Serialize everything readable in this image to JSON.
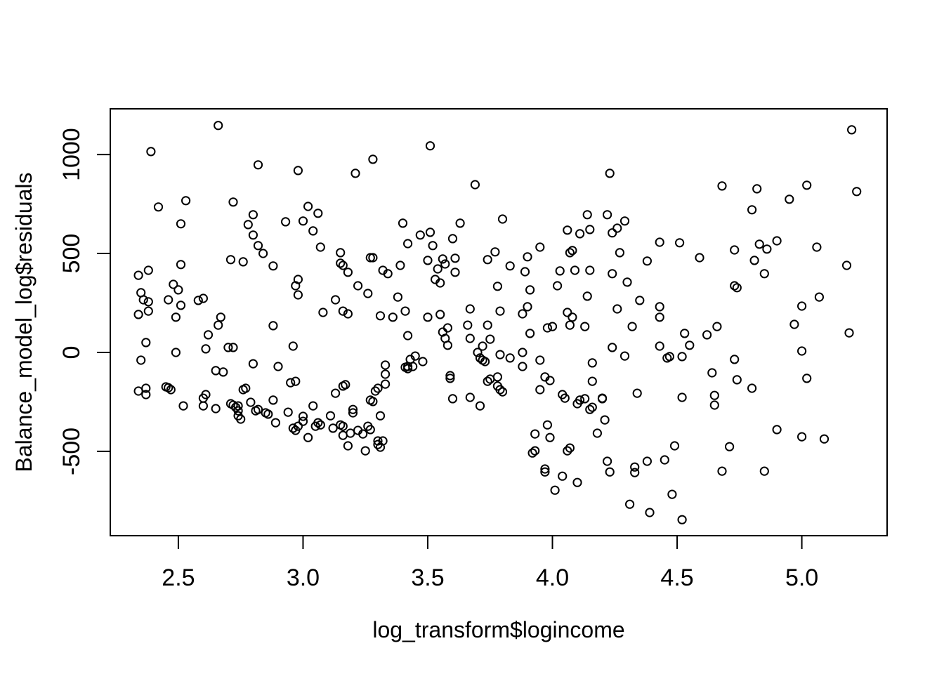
{
  "chart_data": {
    "type": "scatter",
    "title": "",
    "xlabel": "log_transform$logincome",
    "ylabel": "Balance_model_log$residuals",
    "marker": "open-circle",
    "marker_color": "#000000",
    "background_color": "#ffffff",
    "grid": false,
    "legend": "none",
    "xlim": [
      2.227,
      5.342
    ],
    "ylim": [
      -926,
      1231
    ],
    "x_ticks": [
      2.5,
      3.0,
      3.5,
      4.0,
      4.5,
      5.0
    ],
    "x_tick_labels": [
      "2.5",
      "3.0",
      "3.5",
      "4.0",
      "4.5",
      "5.0"
    ],
    "y_ticks": [
      -500,
      0,
      500,
      1000
    ],
    "y_tick_labels": [
      "-500",
      "0",
      "500",
      "1000"
    ],
    "points": [
      [
        2.66,
        1147
      ],
      [
        2.39,
        1015
      ],
      [
        2.82,
        948
      ],
      [
        2.98,
        919
      ],
      [
        3.21,
        905
      ],
      [
        3.28,
        976
      ],
      [
        2.42,
        735
      ],
      [
        2.53,
        767
      ],
      [
        2.72,
        760
      ],
      [
        2.51,
        650
      ],
      [
        2.78,
        646
      ],
      [
        2.8,
        696
      ],
      [
        2.8,
        593
      ],
      [
        2.82,
        540
      ],
      [
        2.84,
        500
      ],
      [
        2.93,
        660
      ],
      [
        3.0,
        664
      ],
      [
        3.02,
        738
      ],
      [
        3.04,
        614
      ],
      [
        3.06,
        703
      ],
      [
        3.07,
        532
      ],
      [
        3.15,
        504
      ],
      [
        3.15,
        451
      ],
      [
        3.16,
        440
      ],
      [
        3.18,
        405
      ],
      [
        3.27,
        479
      ],
      [
        3.28,
        479
      ],
      [
        3.22,
        337
      ],
      [
        3.26,
        298
      ],
      [
        3.32,
        415
      ],
      [
        3.34,
        398
      ],
      [
        2.71,
        469
      ],
      [
        2.76,
        458
      ],
      [
        2.88,
        437
      ],
      [
        2.51,
        444
      ],
      [
        2.34,
        390
      ],
      [
        2.38,
        415
      ],
      [
        2.35,
        302
      ],
      [
        2.36,
        266
      ],
      [
        2.38,
        256
      ],
      [
        2.38,
        209
      ],
      [
        2.48,
        344
      ],
      [
        2.5,
        316
      ],
      [
        2.46,
        266
      ],
      [
        2.51,
        238
      ],
      [
        2.58,
        263
      ],
      [
        2.6,
        273
      ],
      [
        2.67,
        178
      ],
      [
        2.49,
        178
      ],
      [
        2.34,
        192
      ],
      [
        2.98,
        369
      ],
      [
        2.97,
        337
      ],
      [
        2.98,
        291
      ],
      [
        3.08,
        202
      ],
      [
        3.13,
        266
      ],
      [
        3.16,
        209
      ],
      [
        3.18,
        195
      ],
      [
        3.31,
        185
      ],
      [
        3.51,
        1044
      ],
      [
        3.69,
        848
      ],
      [
        4.23,
        905
      ],
      [
        3.4,
        653
      ],
      [
        3.63,
        653
      ],
      [
        3.8,
        674
      ],
      [
        4.14,
        696
      ],
      [
        4.22,
        696
      ],
      [
        4.29,
        664
      ],
      [
        4.06,
        618
      ],
      [
        4.11,
        600
      ],
      [
        4.15,
        621
      ],
      [
        4.24,
        604
      ],
      [
        4.26,
        628
      ],
      [
        3.47,
        593
      ],
      [
        3.51,
        607
      ],
      [
        3.42,
        550
      ],
      [
        3.52,
        540
      ],
      [
        3.6,
        575
      ],
      [
        4.43,
        557
      ],
      [
        3.95,
        532
      ],
      [
        4.08,
        515
      ],
      [
        4.07,
        504
      ],
      [
        4.27,
        504
      ],
      [
        3.5,
        465
      ],
      [
        3.56,
        472
      ],
      [
        3.57,
        447
      ],
      [
        3.61,
        476
      ],
      [
        3.74,
        469
      ],
      [
        3.77,
        508
      ],
      [
        3.9,
        483
      ],
      [
        4.38,
        462
      ],
      [
        3.39,
        440
      ],
      [
        3.54,
        422
      ],
      [
        3.61,
        405
      ],
      [
        3.53,
        369
      ],
      [
        3.55,
        351
      ],
      [
        3.83,
        437
      ],
      [
        3.89,
        408
      ],
      [
        4.03,
        412
      ],
      [
        4.09,
        415
      ],
      [
        4.15,
        415
      ],
      [
        4.24,
        398
      ],
      [
        4.3,
        355
      ],
      [
        3.78,
        334
      ],
      [
        3.91,
        316
      ],
      [
        4.02,
        337
      ],
      [
        4.14,
        284
      ],
      [
        3.38,
        280
      ],
      [
        3.67,
        220
      ],
      [
        3.79,
        209
      ],
      [
        3.9,
        231
      ],
      [
        3.88,
        195
      ],
      [
        4.06,
        202
      ],
      [
        4.08,
        178
      ],
      [
        4.26,
        220
      ],
      [
        4.35,
        263
      ],
      [
        4.43,
        231
      ],
      [
        4.43,
        178
      ],
      [
        3.36,
        178
      ],
      [
        3.41,
        209
      ],
      [
        3.5,
        178
      ],
      [
        3.55,
        192
      ],
      [
        5.2,
        1125
      ],
      [
        4.68,
        841
      ],
      [
        4.82,
        827
      ],
      [
        5.02,
        845
      ],
      [
        5.22,
        813
      ],
      [
        4.95,
        774
      ],
      [
        4.8,
        721
      ],
      [
        4.51,
        554
      ],
      [
        4.59,
        479
      ],
      [
        4.73,
        518
      ],
      [
        4.83,
        547
      ],
      [
        4.86,
        522
      ],
      [
        4.9,
        564
      ],
      [
        4.81,
        465
      ],
      [
        4.85,
        398
      ],
      [
        5.06,
        532
      ],
      [
        5.18,
        440
      ],
      [
        4.73,
        337
      ],
      [
        4.74,
        327
      ],
      [
        5.07,
        280
      ],
      [
        5.0,
        234
      ],
      [
        2.37,
        50
      ],
      [
        2.35,
        -39
      ],
      [
        2.49,
        0
      ],
      [
        2.62,
        89
      ],
      [
        2.66,
        138
      ],
      [
        2.61,
        18
      ],
      [
        2.7,
        25
      ],
      [
        2.72,
        25
      ],
      [
        2.88,
        135
      ],
      [
        2.96,
        32
      ],
      [
        2.8,
        -57
      ],
      [
        2.9,
        -71
      ],
      [
        2.65,
        -92
      ],
      [
        2.68,
        -99
      ],
      [
        2.34,
        -195
      ],
      [
        2.37,
        -181
      ],
      [
        2.37,
        -213
      ],
      [
        2.45,
        -174
      ],
      [
        2.46,
        -178
      ],
      [
        2.47,
        -188
      ],
      [
        2.52,
        -270
      ],
      [
        2.6,
        -231
      ],
      [
        2.61,
        -213
      ],
      [
        2.6,
        -270
      ],
      [
        2.65,
        -284
      ],
      [
        2.71,
        -259
      ],
      [
        2.72,
        -266
      ],
      [
        2.73,
        -277
      ],
      [
        2.74,
        -295
      ],
      [
        2.74,
        -270
      ],
      [
        2.76,
        -188
      ],
      [
        2.77,
        -181
      ],
      [
        2.74,
        -320
      ],
      [
        2.75,
        -337
      ],
      [
        2.79,
        -252
      ],
      [
        2.81,
        -295
      ],
      [
        2.82,
        -288
      ],
      [
        2.85,
        -305
      ],
      [
        2.86,
        -312
      ],
      [
        2.88,
        -241
      ],
      [
        2.89,
        -355
      ],
      [
        2.94,
        -302
      ],
      [
        2.96,
        -383
      ],
      [
        2.97,
        -394
      ],
      [
        2.98,
        -373
      ],
      [
        3.0,
        -323
      ],
      [
        3.0,
        -348
      ],
      [
        3.02,
        -430
      ],
      [
        3.04,
        -270
      ],
      [
        3.05,
        -373
      ],
      [
        3.06,
        -355
      ],
      [
        3.07,
        -366
      ],
      [
        3.11,
        -320
      ],
      [
        3.12,
        -383
      ],
      [
        3.15,
        -366
      ],
      [
        3.16,
        -373
      ],
      [
        3.16,
        -419
      ],
      [
        3.18,
        -472
      ],
      [
        3.19,
        -408
      ],
      [
        3.2,
        -305
      ],
      [
        3.2,
        -288
      ],
      [
        3.22,
        -394
      ],
      [
        3.24,
        -412
      ],
      [
        3.25,
        -497
      ],
      [
        3.26,
        -373
      ],
      [
        3.27,
        -390
      ],
      [
        3.27,
        -241
      ],
      [
        3.28,
        -248
      ],
      [
        3.3,
        -447
      ],
      [
        3.3,
        -465
      ],
      [
        3.31,
        -479
      ],
      [
        3.31,
        -320
      ],
      [
        3.32,
        -447
      ],
      [
        3.33,
        -64
      ],
      [
        3.33,
        -160
      ],
      [
        3.29,
        -195
      ],
      [
        3.3,
        -181
      ],
      [
        3.16,
        -170
      ],
      [
        3.17,
        -163
      ],
      [
        3.13,
        -206
      ],
      [
        2.95,
        -153
      ],
      [
        2.97,
        -146
      ],
      [
        3.42,
        85
      ],
      [
        3.58,
        124
      ],
      [
        3.57,
        71
      ],
      [
        3.58,
        36
      ],
      [
        3.67,
        71
      ],
      [
        3.66,
        138
      ],
      [
        3.74,
        138
      ],
      [
        3.75,
        67
      ],
      [
        3.72,
        32
      ],
      [
        3.7,
        0
      ],
      [
        3.71,
        -28
      ],
      [
        3.72,
        -39
      ],
      [
        3.73,
        -46
      ],
      [
        3.45,
        -18
      ],
      [
        3.48,
        -46
      ],
      [
        3.43,
        -35
      ],
      [
        3.44,
        -71
      ],
      [
        3.41,
        -75
      ],
      [
        3.42,
        -82
      ],
      [
        3.42,
        -71
      ],
      [
        3.33,
        -110
      ],
      [
        3.79,
        -11
      ],
      [
        3.83,
        -28
      ],
      [
        3.88,
        0
      ],
      [
        3.88,
        -71
      ],
      [
        3.91,
        96
      ],
      [
        3.95,
        -39
      ],
      [
        3.98,
        124
      ],
      [
        4.0,
        131
      ],
      [
        4.07,
        138
      ],
      [
        4.13,
        131
      ],
      [
        4.16,
        -53
      ],
      [
        4.16,
        -146
      ],
      [
        4.2,
        -231
      ],
      [
        4.32,
        131
      ],
      [
        4.24,
        25
      ],
      [
        4.29,
        -18
      ],
      [
        4.43,
        32
      ],
      [
        4.46,
        -28
      ],
      [
        4.34,
        -206
      ],
      [
        3.59,
        -117
      ],
      [
        3.59,
        -131
      ],
      [
        3.56,
        103
      ],
      [
        3.6,
        -234
      ],
      [
        3.67,
        -227
      ],
      [
        3.71,
        -270
      ],
      [
        3.74,
        -146
      ],
      [
        3.75,
        -135
      ],
      [
        3.78,
        -124
      ],
      [
        3.78,
        -170
      ],
      [
        3.79,
        -188
      ],
      [
        3.8,
        -199
      ],
      [
        3.95,
        -188
      ],
      [
        3.97,
        -124
      ],
      [
        3.99,
        -142
      ],
      [
        4.04,
        -213
      ],
      [
        4.05,
        -231
      ],
      [
        4.1,
        -259
      ],
      [
        4.11,
        -241
      ],
      [
        4.13,
        -234
      ],
      [
        4.15,
        -288
      ],
      [
        4.16,
        -277
      ],
      [
        4.2,
        -234
      ],
      [
        4.21,
        -341
      ],
      [
        4.18,
        -408
      ],
      [
        3.98,
        -366
      ],
      [
        3.93,
        -412
      ],
      [
        3.99,
        -430
      ],
      [
        3.93,
        -497
      ],
      [
        3.92,
        -508
      ],
      [
        3.97,
        -589
      ],
      [
        3.97,
        -604
      ],
      [
        4.04,
        -625
      ],
      [
        4.1,
        -657
      ],
      [
        4.01,
        -696
      ],
      [
        4.06,
        -497
      ],
      [
        4.07,
        -483
      ],
      [
        4.22,
        -550
      ],
      [
        4.23,
        -604
      ],
      [
        4.33,
        -579
      ],
      [
        4.33,
        -607
      ],
      [
        4.38,
        -550
      ],
      [
        4.45,
        -543
      ],
      [
        4.31,
        -767
      ],
      [
        4.39,
        -809
      ],
      [
        4.53,
        96
      ],
      [
        4.62,
        89
      ],
      [
        4.66,
        131
      ],
      [
        4.97,
        142
      ],
      [
        5.19,
        99
      ],
      [
        4.55,
        36
      ],
      [
        4.52,
        -21
      ],
      [
        4.47,
        -21
      ],
      [
        5.0,
        7
      ],
      [
        4.73,
        -35
      ],
      [
        4.64,
        -103
      ],
      [
        4.74,
        -138
      ],
      [
        4.8,
        -181
      ],
      [
        5.02,
        -131
      ],
      [
        4.52,
        -227
      ],
      [
        4.65,
        -217
      ],
      [
        4.65,
        -266
      ],
      [
        4.9,
        -390
      ],
      [
        5.0,
        -426
      ],
      [
        5.09,
        -437
      ],
      [
        4.49,
        -472
      ],
      [
        4.71,
        -476
      ],
      [
        4.68,
        -600
      ],
      [
        4.85,
        -600
      ],
      [
        4.48,
        -717
      ],
      [
        4.52,
        -845
      ]
    ]
  }
}
